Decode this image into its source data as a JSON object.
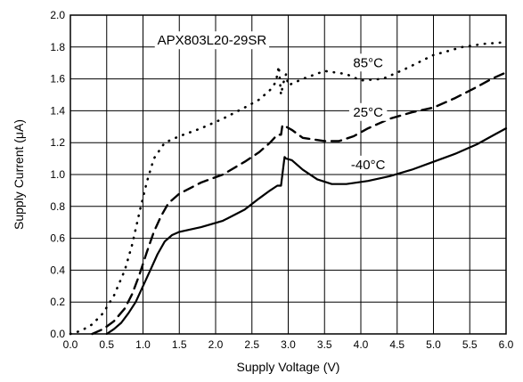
{
  "chart_data": {
    "type": "line",
    "title": "",
    "xlabel": "Supply Voltage (V)",
    "ylabel": "Supply Current (μA)",
    "xlim": [
      0.0,
      6.0
    ],
    "ylim": [
      0.0,
      2.0
    ],
    "grid": true,
    "x_ticks": [
      "0.0",
      "0.5",
      "1.0",
      "1.5",
      "2.0",
      "2.5",
      "3.0",
      "3.5",
      "4.0",
      "4.5",
      "5.0",
      "5.5",
      "6.0"
    ],
    "y_ticks": [
      "0.0",
      "0.2",
      "0.4",
      "0.6",
      "0.8",
      "1.0",
      "1.2",
      "1.4",
      "1.6",
      "1.8",
      "2.0"
    ],
    "annotations": [
      {
        "text": "APX803L20-29SR",
        "x": 1.95,
        "y": 1.82,
        "key": "part"
      },
      {
        "text": "85°C",
        "x": 4.1,
        "y": 1.68,
        "key": "s85"
      },
      {
        "text": "25°C",
        "x": 4.1,
        "y": 1.37,
        "key": "s25"
      },
      {
        "text": "-40°C",
        "x": 4.1,
        "y": 1.04,
        "key": "sm40"
      }
    ],
    "series": [
      {
        "key": "s85",
        "style": "dotted",
        "x": [
          0.0,
          0.15,
          0.3,
          0.45,
          0.6,
          0.75,
          0.85,
          0.95,
          1.05,
          1.15,
          1.3,
          1.5,
          1.8,
          2.1,
          2.4,
          2.6,
          2.75,
          2.83,
          2.87,
          2.9,
          2.93,
          2.97,
          3.0,
          3.2,
          3.5,
          3.8,
          4.0,
          4.3,
          4.6,
          5.0,
          5.4,
          5.7,
          6.0
        ],
        "y": [
          0.0,
          0.02,
          0.06,
          0.13,
          0.24,
          0.4,
          0.56,
          0.76,
          0.95,
          1.1,
          1.2,
          1.24,
          1.29,
          1.35,
          1.42,
          1.47,
          1.53,
          1.58,
          1.68,
          1.5,
          1.57,
          1.63,
          1.56,
          1.6,
          1.65,
          1.63,
          1.59,
          1.6,
          1.66,
          1.75,
          1.8,
          1.82,
          1.83
        ]
      },
      {
        "key": "s25",
        "style": "dashed",
        "x": [
          0.3,
          0.45,
          0.6,
          0.75,
          0.85,
          0.95,
          1.05,
          1.15,
          1.25,
          1.35,
          1.5,
          1.8,
          2.1,
          2.4,
          2.6,
          2.75,
          2.85,
          2.9,
          2.92,
          2.97,
          3.05,
          3.2,
          3.5,
          3.7,
          3.9,
          4.1,
          4.4,
          4.7,
          5.0,
          5.3,
          5.6,
          5.8,
          6.0
        ],
        "y": [
          0.0,
          0.03,
          0.08,
          0.16,
          0.25,
          0.37,
          0.51,
          0.64,
          0.74,
          0.82,
          0.88,
          0.95,
          1.0,
          1.08,
          1.14,
          1.2,
          1.25,
          1.25,
          1.31,
          1.3,
          1.28,
          1.23,
          1.21,
          1.21,
          1.24,
          1.29,
          1.35,
          1.39,
          1.42,
          1.48,
          1.55,
          1.6,
          1.64
        ]
      },
      {
        "key": "sm40",
        "style": "solid",
        "x": [
          0.5,
          0.6,
          0.7,
          0.8,
          0.9,
          1.0,
          1.1,
          1.2,
          1.3,
          1.4,
          1.5,
          1.8,
          2.1,
          2.4,
          2.6,
          2.75,
          2.85,
          2.9,
          2.95,
          2.97,
          3.05,
          3.2,
          3.4,
          3.6,
          3.8,
          4.1,
          4.4,
          4.7,
          5.0,
          5.3,
          5.6,
          5.8,
          6.0
        ],
        "y": [
          0.0,
          0.03,
          0.07,
          0.13,
          0.2,
          0.3,
          0.4,
          0.5,
          0.58,
          0.62,
          0.64,
          0.67,
          0.71,
          0.78,
          0.85,
          0.9,
          0.93,
          0.93,
          1.11,
          1.1,
          1.09,
          1.03,
          0.97,
          0.94,
          0.94,
          0.96,
          0.99,
          1.03,
          1.08,
          1.13,
          1.19,
          1.24,
          1.29
        ]
      }
    ]
  }
}
